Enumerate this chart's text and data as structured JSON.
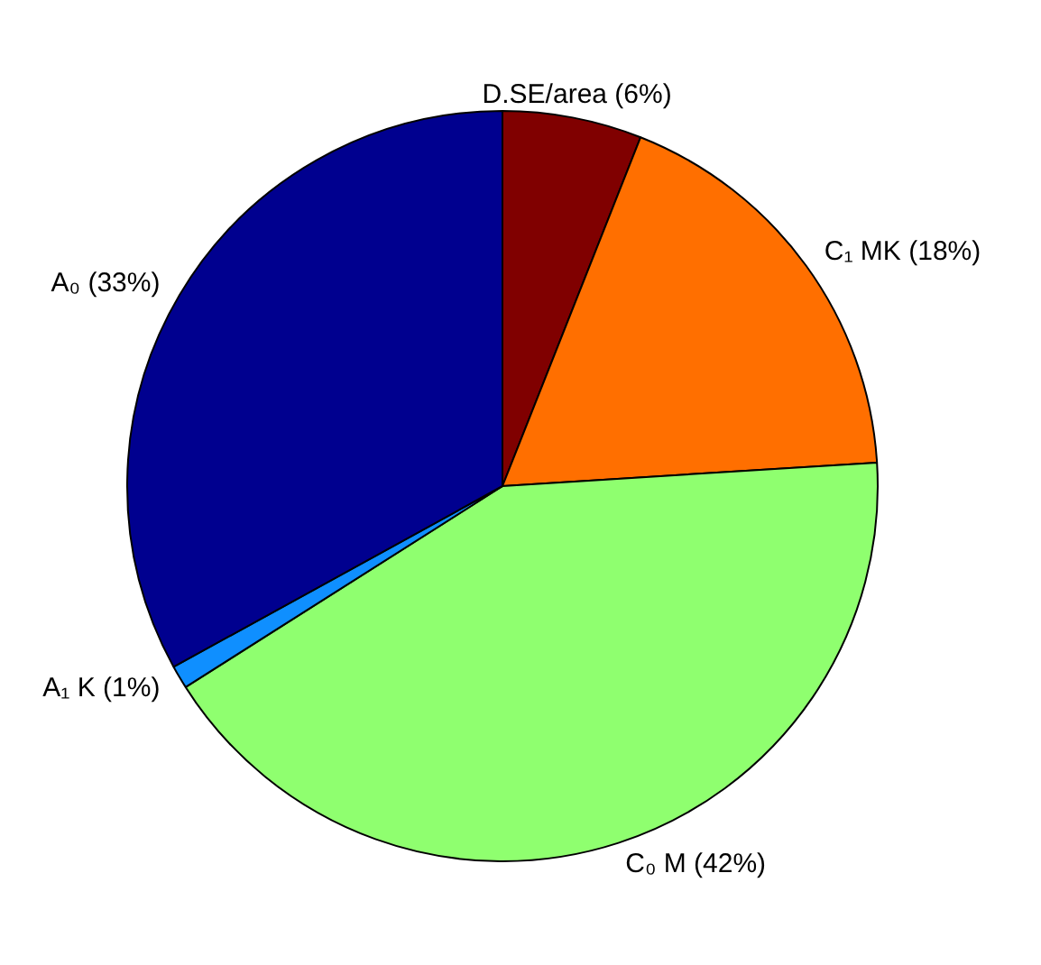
{
  "chart_data": {
    "type": "pie",
    "categories": [
      "D.SE/area (6%)",
      "C₁ MK (18%)",
      "C₀ M (42%)",
      "A₁ K (1%)",
      "A₀ (33%)"
    ],
    "values": [
      6,
      18,
      42,
      1,
      33
    ],
    "colors": [
      "#800000",
      "#ff6f00",
      "#8fff6f",
      "#0f8fff",
      "#00008f"
    ]
  }
}
